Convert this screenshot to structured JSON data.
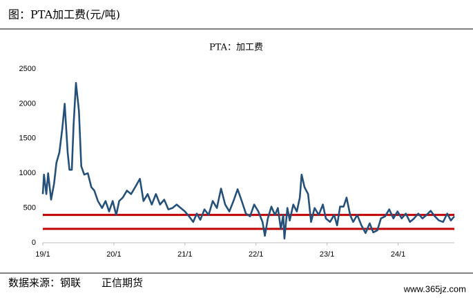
{
  "header": "图：PTA加工费(元/吨)",
  "chart_data": {
    "type": "line",
    "title": "PTA：加工费",
    "x": [
      0,
      0.2,
      0.6,
      0.9,
      1.4,
      1.9,
      2.3,
      2.8,
      3.3,
      3.7,
      4.2,
      4.5,
      4.9,
      5.2,
      5.6,
      6.1,
      6.5,
      7.0,
      7.6,
      8.2,
      8.7,
      9.3,
      10.0,
      10.6,
      11.2,
      11.8,
      12.4,
      12.9,
      13.5,
      14.2,
      14.9,
      15.6,
      16.4,
      17.0,
      17.7,
      18.4,
      19.1,
      19.8,
      20.5,
      21.2,
      21.9,
      22.6,
      23.3,
      24.0,
      24.7,
      25.4,
      26.0,
      26.6,
      27.3,
      28.0,
      28.7,
      29.4,
      30.1,
      30.8,
      31.5,
      32.2,
      32.9,
      33.6,
      34.3,
      35.0,
      35.7,
      36.4,
      37.1,
      37.5,
      38.0,
      38.6,
      39.2,
      39.7,
      40.2,
      40.6,
      40.8,
      41.3,
      41.7,
      42.3,
      42.9,
      43.4,
      43.7,
      44.2,
      44.8,
      45.3,
      45.9,
      46.6,
      47.3,
      47.8,
      48.5,
      49.2,
      49.7,
      50.2,
      50.8,
      51.3,
      51.9,
      52.4,
      53.1,
      53.8,
      54.5,
      55.2,
      55.8,
      56.5,
      57.1,
      57.8,
      58.5,
      59.2,
      59.9,
      60.6,
      61.3,
      62.0,
      62.7,
      63.4,
      64.1,
      64.8,
      65.5,
      66.2,
      66.9,
      67.6,
      68.3,
      68.9,
      69.5
    ],
    "series": [
      {
        "name": "PTA：加工费",
        "color": "#24507a",
        "values": [
          700,
          980,
          700,
          1000,
          620,
          850,
          1150,
          1300,
          1650,
          2000,
          1300,
          1050,
          1050,
          1700,
          2300,
          1900,
          1100,
          980,
          1000,
          800,
          750,
          600,
          500,
          600,
          450,
          600,
          400,
          600,
          650,
          750,
          700,
          800,
          920,
          600,
          700,
          550,
          700,
          550,
          620,
          480,
          500,
          550,
          500,
          450,
          380,
          300,
          420,
          330,
          480,
          400,
          600,
          500,
          780,
          550,
          450,
          600,
          770,
          600,
          420,
          380,
          550,
          450,
          300,
          100,
          350,
          520,
          400,
          500,
          200,
          400,
          60,
          500,
          320,
          550,
          450,
          650,
          980,
          800,
          700,
          300,
          500,
          400,
          550,
          350,
          300,
          400,
          250,
          520,
          520,
          650,
          400,
          300,
          400,
          250,
          140,
          280,
          150,
          180,
          350,
          380,
          480,
          350,
          450,
          350,
          420,
          300,
          350,
          420,
          350,
          400,
          460,
          380,
          320,
          300,
          420,
          320,
          380
        ]
      }
    ],
    "reference_lines": [
      {
        "value": 400,
        "color": "#c00000"
      },
      {
        "value": 200,
        "color": "#c00000"
      }
    ],
    "xlim": [
      0,
      69.5
    ],
    "xticks": [
      {
        "value": 0,
        "label": "19/1"
      },
      {
        "value": 12,
        "label": "20/1"
      },
      {
        "value": 24,
        "label": "21/1"
      },
      {
        "value": 36,
        "label": "22/1"
      },
      {
        "value": 48,
        "label": "23/1"
      },
      {
        "value": 60,
        "label": "24/1"
      }
    ],
    "ylim": [
      0,
      2500
    ],
    "yticks": [
      0,
      500,
      1000,
      1500,
      2000,
      2500
    ]
  },
  "source": "数据来源：钢联　　正信期货",
  "watermark": "www.365jz.com"
}
